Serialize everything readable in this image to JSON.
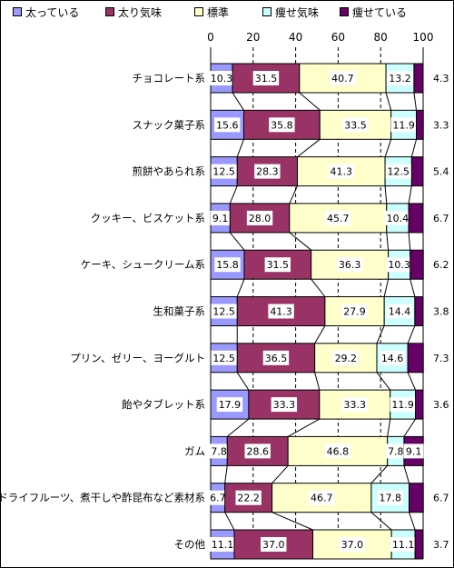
{
  "chart_data": {
    "type": "bar",
    "orientation": "horizontal",
    "stacked": true,
    "percent": true,
    "legend_position": "top",
    "grid": true,
    "xlim": [
      0,
      100
    ],
    "xticks": [
      0,
      20,
      40,
      60,
      80,
      100
    ],
    "categories": [
      "チョコレート系",
      "スナック菓子系",
      "煎餅やあられ系",
      "クッキー、ビスケット系",
      "ケーキ、シュークリーム系",
      "生和菓子系",
      "プリン、ゼリー、ヨーグルト",
      "飴やタブレット系",
      "ガム",
      "ドライフルーツ、煮干しや酢昆布など素材系",
      "その他"
    ],
    "series": [
      {
        "name": "太っている",
        "color": "#9999ff",
        "values": [
          10.3,
          15.6,
          12.5,
          9.1,
          15.8,
          12.5,
          12.5,
          17.9,
          7.8,
          6.7,
          11.1
        ]
      },
      {
        "name": "太り気味",
        "color": "#993366",
        "values": [
          31.5,
          35.8,
          28.3,
          28.0,
          31.5,
          41.3,
          36.5,
          33.3,
          28.6,
          22.2,
          37.0
        ]
      },
      {
        "name": "標準",
        "color": "#ffffcc",
        "values": [
          40.7,
          33.5,
          41.3,
          45.7,
          36.3,
          27.9,
          29.2,
          33.3,
          46.8,
          46.7,
          37.0
        ]
      },
      {
        "name": "痩せ気味",
        "color": "#ccffff",
        "values": [
          13.2,
          11.9,
          12.5,
          10.4,
          10.3,
          14.4,
          14.6,
          11.9,
          7.8,
          17.8,
          11.1
        ]
      },
      {
        "name": "痩せている",
        "color": "#660066",
        "values": [
          4.3,
          3.3,
          5.4,
          6.7,
          6.2,
          3.8,
          7.3,
          3.6,
          9.1,
          6.7,
          3.7
        ]
      }
    ]
  }
}
